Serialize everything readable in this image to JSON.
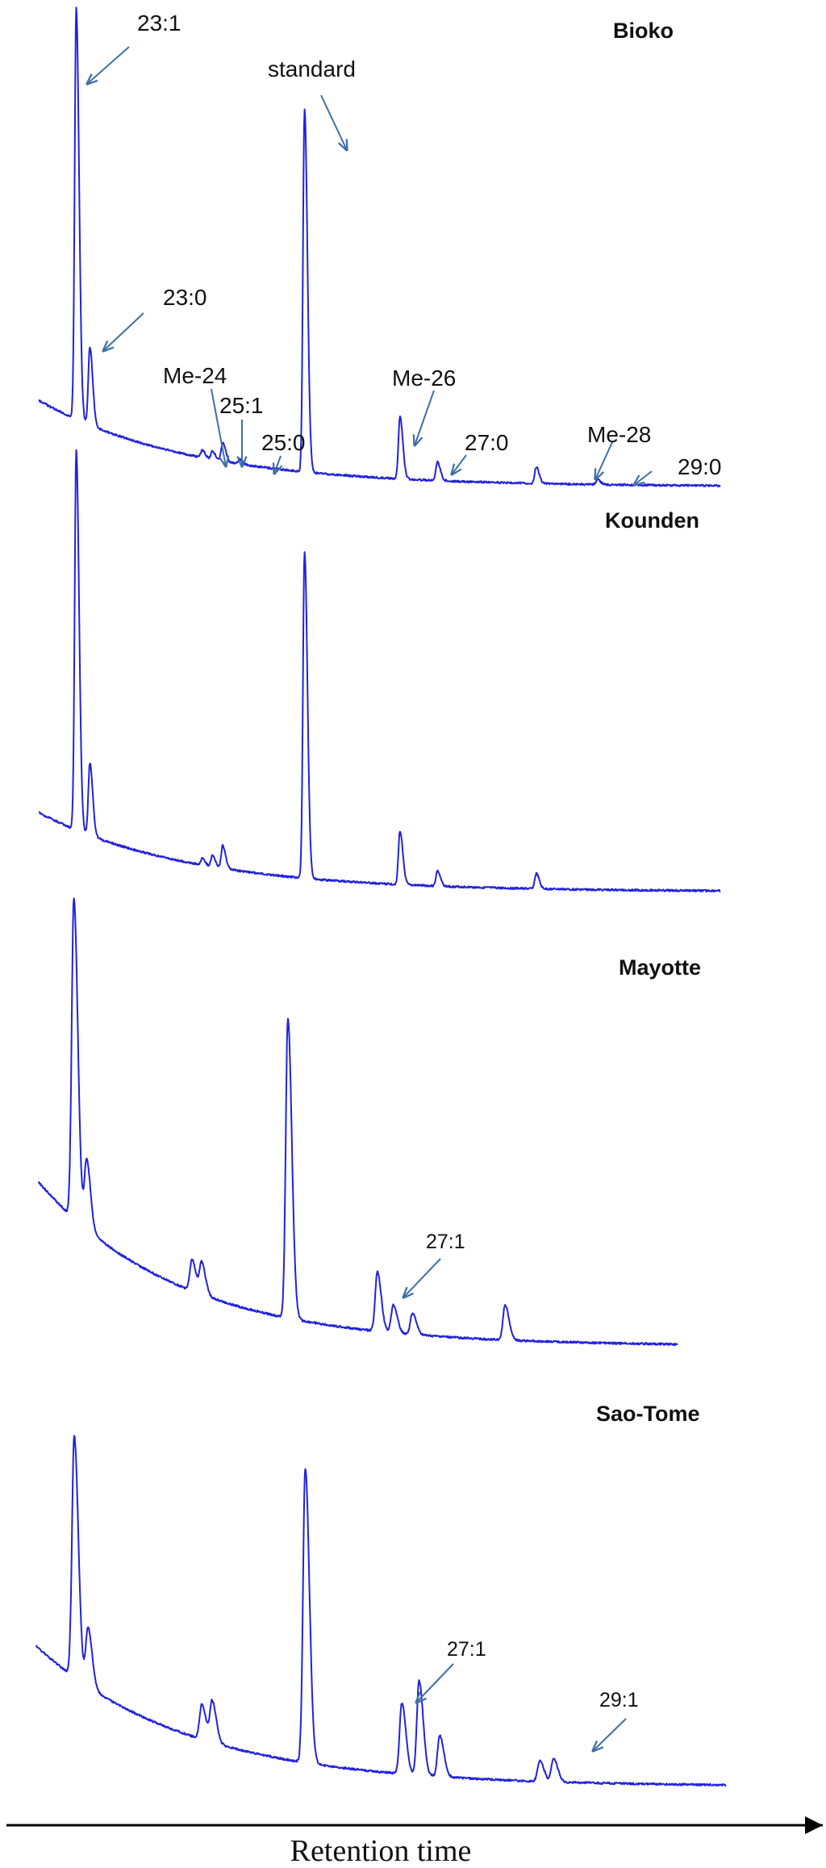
{
  "colors": {
    "trace": "#2222dd",
    "annotation": "#3f6fa6",
    "axis": "#000000"
  },
  "chart_data": {
    "type": "line",
    "title": "",
    "xlabel": "Retention time",
    "ylabel": "",
    "x_axis": "arrow",
    "grid": false,
    "legend": "none",
    "x": [
      0,
      0.02,
      0.05,
      0.055,
      0.075,
      0.1,
      0.15,
      0.2,
      0.24,
      0.255,
      0.27,
      0.3,
      0.33,
      0.35,
      0.38,
      0.39,
      0.42,
      0.45,
      0.5,
      0.53,
      0.56,
      0.6,
      0.65,
      0.7,
      0.73,
      0.8,
      0.85,
      0.9,
      1.0
    ],
    "series": [
      {
        "name": "Bioko",
        "peaks": [
          {
            "label": "23:1",
            "x": 0.055,
            "height": 1.0
          },
          {
            "label": "23:0",
            "x": 0.075,
            "height": 0.19
          },
          {
            "label": "Me-24",
            "x": 0.24,
            "height": 0.018
          },
          {
            "label": "25:1",
            "x": 0.255,
            "height": 0.02
          },
          {
            "label": "",
            "x": 0.27,
            "height": 0.045
          },
          {
            "label": "25:0",
            "x": 0.295,
            "height": 0.012
          },
          {
            "label": "standard",
            "x": 0.39,
            "height": 0.88
          },
          {
            "label": "Me-26",
            "x": 0.53,
            "height": 0.15
          },
          {
            "label": "27:0",
            "x": 0.585,
            "height": 0.045
          },
          {
            "label": "Me-28",
            "x": 0.73,
            "height": 0.04
          },
          {
            "label": "29:0",
            "x": 0.82,
            "height": 0.012
          }
        ]
      },
      {
        "name": "Kounden",
        "peaks": [
          {
            "label": "23:1",
            "x": 0.055,
            "height": 1.0
          },
          {
            "label": "23:0",
            "x": 0.075,
            "height": 0.19
          },
          {
            "label": "Me-24",
            "x": 0.24,
            "height": 0.018
          },
          {
            "label": "25:1",
            "x": 0.255,
            "height": 0.03
          },
          {
            "label": "",
            "x": 0.27,
            "height": 0.06
          },
          {
            "label": "standard",
            "x": 0.39,
            "height": 0.86
          },
          {
            "label": "Me-26",
            "x": 0.53,
            "height": 0.14
          },
          {
            "label": "27:0",
            "x": 0.585,
            "height": 0.04
          },
          {
            "label": "Me-28",
            "x": 0.73,
            "height": 0.04
          }
        ]
      },
      {
        "name": "Mayotte",
        "peaks": [
          {
            "label": "23:1",
            "x": 0.055,
            "height": 0.92
          },
          {
            "label": "23:0",
            "x": 0.075,
            "height": 0.2
          },
          {
            "label": "Me-24",
            "x": 0.24,
            "height": 0.09
          },
          {
            "label": "25:1",
            "x": 0.255,
            "height": 0.09
          },
          {
            "label": "standard",
            "x": 0.39,
            "height": 0.86
          },
          {
            "label": "Me-26",
            "x": 0.53,
            "height": 0.17
          },
          {
            "label": "27:1",
            "x": 0.555,
            "height": 0.08
          },
          {
            "label": "27:0",
            "x": 0.585,
            "height": 0.06
          },
          {
            "label": "Me-28",
            "x": 0.73,
            "height": 0.1
          }
        ]
      },
      {
        "name": "Sao-Tome",
        "peaks": [
          {
            "label": "23:1",
            "x": 0.055,
            "height": 0.82
          },
          {
            "label": "23:0",
            "x": 0.075,
            "height": 0.2
          },
          {
            "label": "Me-24",
            "x": 0.24,
            "height": 0.12
          },
          {
            "label": "25:1",
            "x": 0.255,
            "height": 0.14
          },
          {
            "label": "standard",
            "x": 0.39,
            "height": 1.0
          },
          {
            "label": "Me-26",
            "x": 0.53,
            "height": 0.24
          },
          {
            "label": "27:1",
            "x": 0.555,
            "height": 0.32
          },
          {
            "label": "27:0",
            "x": 0.585,
            "height": 0.14
          },
          {
            "label": "Me-28",
            "x": 0.73,
            "height": 0.07
          },
          {
            "label": "29:1",
            "x": 0.75,
            "height": 0.08
          }
        ]
      }
    ],
    "annotations": [
      {
        "panel": "Bioko",
        "text": "23:1"
      },
      {
        "panel": "Bioko",
        "text": "standard"
      },
      {
        "panel": "Bioko",
        "text": "23:0"
      },
      {
        "panel": "Bioko",
        "text": "Me-24"
      },
      {
        "panel": "Bioko",
        "text": "25:1"
      },
      {
        "panel": "Bioko",
        "text": "25:0"
      },
      {
        "panel": "Bioko",
        "text": "Me-26"
      },
      {
        "panel": "Bioko",
        "text": "27:0"
      },
      {
        "panel": "Bioko",
        "text": "Me-28"
      },
      {
        "panel": "Bioko",
        "text": "29:0"
      },
      {
        "panel": "Mayotte",
        "text": "27:1"
      },
      {
        "panel": "Sao-Tome",
        "text": "27:1"
      },
      {
        "panel": "Sao-Tome",
        "text": "29:1"
      }
    ]
  }
}
